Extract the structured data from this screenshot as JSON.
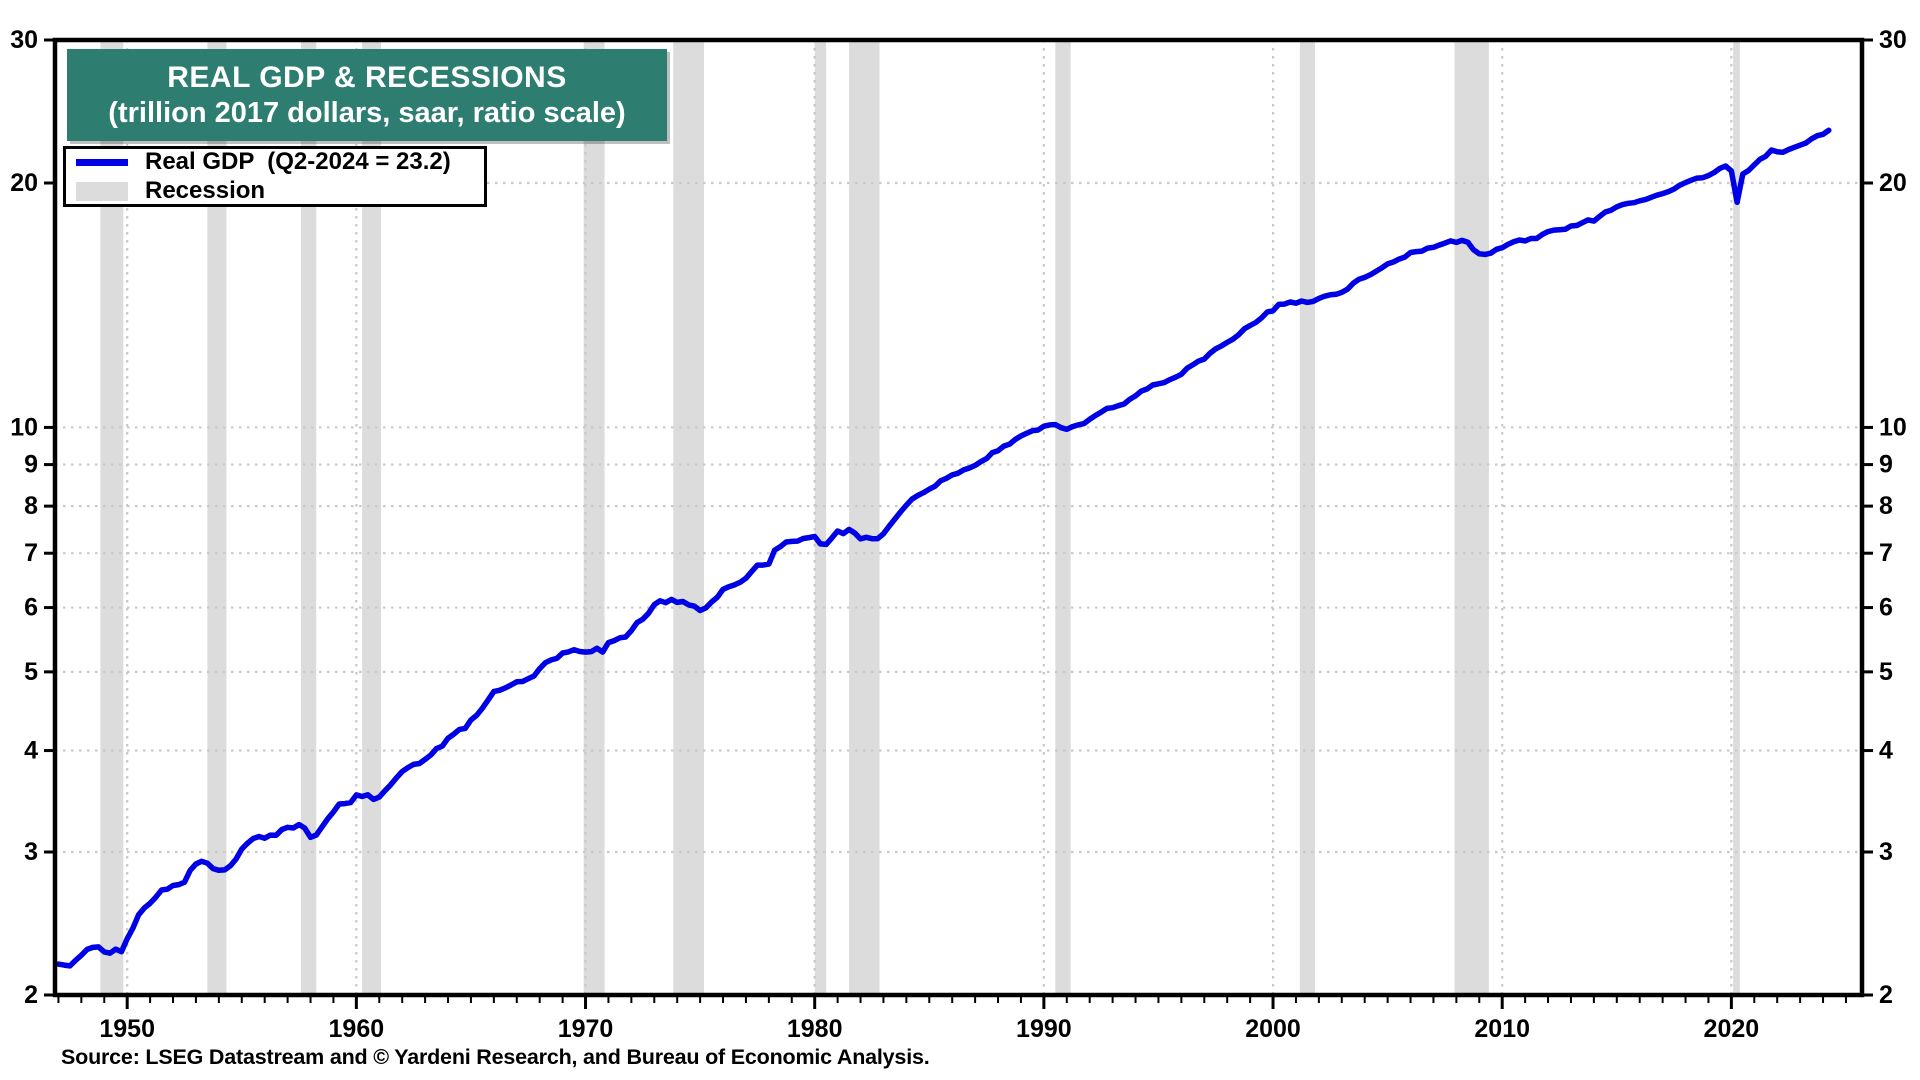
{
  "title": {
    "line1": "REAL GDP & RECESSIONS",
    "line2": "(trillion 2017 dollars, saar, ratio scale)"
  },
  "legend": {
    "items": [
      {
        "label": "Real GDP  (Q2-2024 = 23.2)",
        "swatch": "line"
      },
      {
        "label": "Recession",
        "swatch": "box"
      }
    ]
  },
  "source": "Source: LSEG Datastream and © Yardeni Research, and Bureau of Economic Analysis.",
  "colors": {
    "line": "#0000e6",
    "title_bg": "#2e7d71",
    "title_text": "#ffffff",
    "recession": "#dcdcdc",
    "grid": "#c9c9c9",
    "axis": "#000000"
  },
  "chart_data": {
    "type": "line",
    "title": "REAL GDP & RECESSIONS",
    "subtitle": "(trillion 2017 dollars, saar, ratio scale)",
    "ylabel": "trillion 2017 dollars",
    "y_scale": "log",
    "ylim": [
      2,
      30
    ],
    "xlim": [
      1946.85,
      2025.7
    ],
    "y_ticks": [
      2,
      3,
      4,
      5,
      6,
      7,
      8,
      9,
      10,
      20,
      30
    ],
    "x_ticks": [
      1950,
      1960,
      1970,
      1980,
      1990,
      2000,
      2010,
      2020
    ],
    "x_minor_tick_step": 1,
    "grid": "dotted",
    "legend_position": "top-left",
    "recessions": [
      [
        1948.83,
        1949.83
      ],
      [
        1953.5,
        1954.33
      ],
      [
        1957.58,
        1958.25
      ],
      [
        1960.25,
        1961.08
      ],
      [
        1969.92,
        1970.83
      ],
      [
        1973.83,
        1975.17
      ],
      [
        1980.0,
        1980.5
      ],
      [
        1981.5,
        1982.83
      ],
      [
        1990.5,
        1991.17
      ],
      [
        2001.17,
        2001.83
      ],
      [
        2007.92,
        2009.42
      ],
      [
        2020.08,
        2020.37
      ]
    ],
    "series": [
      {
        "name": "Real GDP",
        "note": "Q2-2024 = 23.2",
        "x_start": 1947.0,
        "x_step": 0.25,
        "values": [
          2.183,
          2.177,
          2.172,
          2.207,
          2.239,
          2.276,
          2.289,
          2.292,
          2.26,
          2.252,
          2.278,
          2.261,
          2.346,
          2.417,
          2.511,
          2.56,
          2.594,
          2.639,
          2.694,
          2.7,
          2.728,
          2.735,
          2.754,
          2.848,
          2.9,
          2.922,
          2.906,
          2.862,
          2.848,
          2.852,
          2.884,
          2.94,
          3.026,
          3.076,
          3.117,
          3.135,
          3.12,
          3.147,
          3.146,
          3.198,
          3.218,
          3.211,
          3.243,
          3.21,
          3.128,
          3.147,
          3.221,
          3.296,
          3.36,
          3.438,
          3.441,
          3.451,
          3.527,
          3.511,
          3.528,
          3.483,
          3.505,
          3.57,
          3.63,
          3.703,
          3.769,
          3.811,
          3.846,
          3.856,
          3.901,
          3.95,
          4.023,
          4.051,
          4.143,
          4.191,
          4.247,
          4.259,
          4.362,
          4.421,
          4.51,
          4.617,
          4.731,
          4.746,
          4.778,
          4.817,
          4.861,
          4.865,
          4.904,
          4.942,
          5.047,
          5.132,
          5.172,
          5.194,
          5.275,
          5.291,
          5.324,
          5.298,
          5.289,
          5.296,
          5.345,
          5.288,
          5.432,
          5.464,
          5.507,
          5.52,
          5.621,
          5.752,
          5.805,
          5.904,
          6.05,
          6.116,
          6.084,
          6.141,
          6.089,
          6.104,
          6.046,
          6.023,
          5.95,
          5.994,
          6.096,
          6.178,
          6.318,
          6.366,
          6.398,
          6.445,
          6.519,
          6.647,
          6.767,
          6.767,
          6.79,
          7.06,
          7.13,
          7.226,
          7.238,
          7.245,
          7.299,
          7.316,
          7.34,
          7.188,
          7.177,
          7.311,
          7.456,
          7.401,
          7.49,
          7.411,
          7.29,
          7.323,
          7.295,
          7.297,
          7.393,
          7.56,
          7.713,
          7.871,
          8.024,
          8.164,
          8.245,
          8.312,
          8.393,
          8.465,
          8.595,
          8.66,
          8.74,
          8.78,
          8.866,
          8.912,
          8.978,
          9.075,
          9.154,
          9.31,
          9.36,
          9.484,
          9.536,
          9.663,
          9.76,
          9.834,
          9.907,
          9.926,
          10.036,
          10.073,
          10.081,
          9.992,
          9.946,
          10.024,
          10.072,
          10.11,
          10.234,
          10.344,
          10.445,
          10.555,
          10.574,
          10.637,
          10.686,
          10.829,
          10.936,
          11.086,
          11.15,
          11.278,
          11.317,
          11.356,
          11.453,
          11.532,
          11.626,
          11.829,
          11.943,
          12.068,
          12.143,
          12.338,
          12.497,
          12.602,
          12.725,
          12.841,
          13.009,
          13.227,
          13.352,
          13.464,
          13.642,
          13.872,
          13.92,
          14.176,
          14.188,
          14.273,
          14.221,
          14.311,
          14.256,
          14.296,
          14.418,
          14.507,
          14.566,
          14.586,
          14.664,
          14.797,
          15.05,
          15.224,
          15.304,
          15.42,
          15.571,
          15.725,
          15.901,
          15.985,
          16.118,
          16.211,
          16.422,
          16.464,
          16.489,
          16.626,
          16.668,
          16.77,
          16.866,
          16.969,
          16.899,
          16.994,
          16.907,
          16.545,
          16.36,
          16.332,
          16.389,
          16.571,
          16.645,
          16.803,
          16.93,
          17.014,
          16.971,
          17.087,
          17.087,
          17.284,
          17.423,
          17.5,
          17.52,
          17.539,
          17.703,
          17.727,
          17.869,
          18.014,
          17.95,
          18.19,
          18.418,
          18.514,
          18.692,
          18.811,
          18.882,
          18.913,
          19.017,
          19.08,
          19.203,
          19.322,
          19.409,
          19.518,
          19.664,
          19.877,
          20.024,
          20.158,
          20.277,
          20.304,
          20.425,
          20.602,
          20.843,
          20.985,
          20.693,
          18.935,
          20.512,
          20.724,
          21.058,
          21.389,
          21.571,
          21.96,
          21.847,
          21.817,
          21.99,
          22.131,
          22.262,
          22.403,
          22.671,
          22.872,
          22.96,
          23.224
        ]
      }
    ]
  }
}
